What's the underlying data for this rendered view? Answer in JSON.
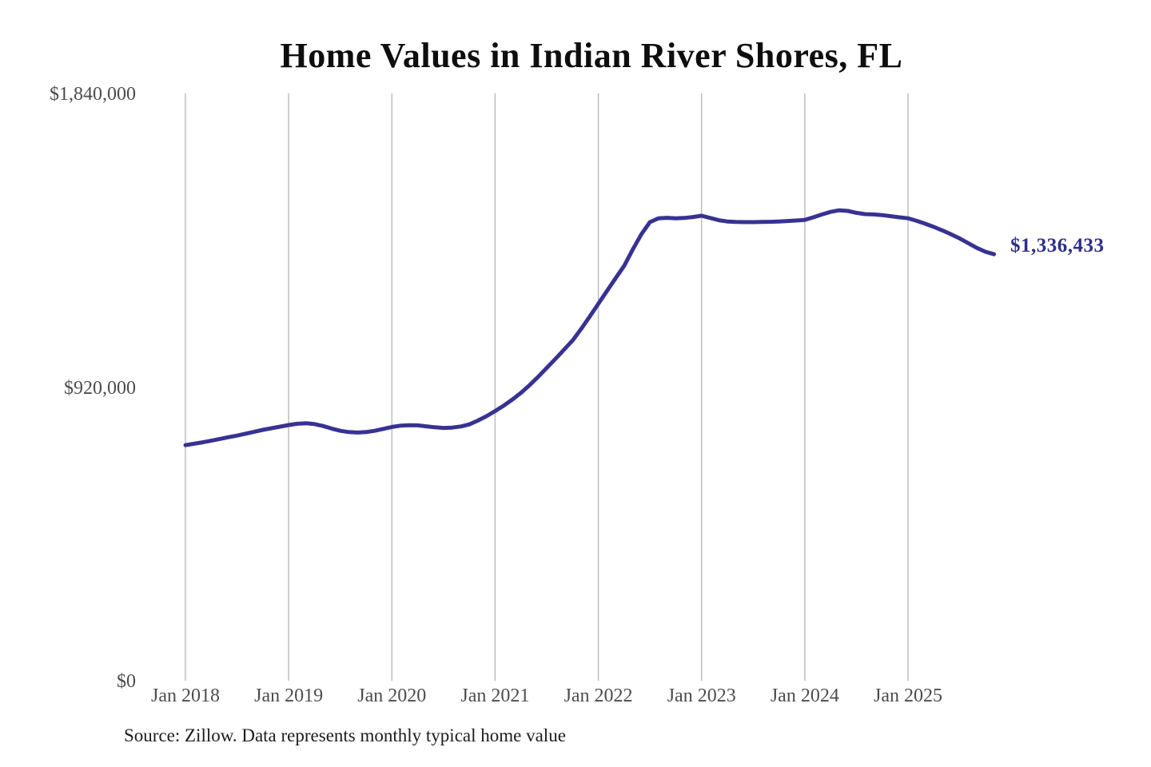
{
  "chart_data": {
    "type": "line",
    "title": "Home Values in Indian River Shores, FL",
    "source": "Source: Zillow. Data represents monthly typical home value",
    "end_label": "$1,336,433",
    "end_value": 1336433,
    "series_name": "Monthly typical home value",
    "frequency": "monthly",
    "start_month": "Jan 2018",
    "end_month": "Nov 2025",
    "ylim": [
      0,
      1840000
    ],
    "grid": "vertical-only",
    "legend": "none",
    "line_color": "#373292",
    "end_label_color": "#2d2f8c",
    "grid_color": "#bdbdbd",
    "tick_label_color": "#4c4c4c",
    "x_ticks": [
      "Jan 2018",
      "Jan 2019",
      "Jan 2020",
      "Jan 2021",
      "Jan 2022",
      "Jan 2023",
      "Jan 2024",
      "Jan 2025"
    ],
    "y_ticks": [
      {
        "label": "$1,840,000",
        "value": 1840000
      },
      {
        "label": "$920,000",
        "value": 920000
      },
      {
        "label": "$0",
        "value": 0
      }
    ],
    "values": [
      738000,
      742500,
      747000,
      752000,
      757500,
      763000,
      768000,
      774000,
      780000,
      786000,
      791000,
      796000,
      801000,
      805000,
      806500,
      804000,
      798000,
      790000,
      783000,
      779000,
      777500,
      779000,
      783000,
      789000,
      795000,
      799000,
      800500,
      800000,
      797000,
      794000,
      792000,
      793000,
      796500,
      803000,
      815000,
      829000,
      845000,
      862000,
      881000,
      902000,
      926000,
      952000,
      980000,
      1008000,
      1037000,
      1066000,
      1102000,
      1141000,
      1181000,
      1221000,
      1261000,
      1300000,
      1351000,
      1399000,
      1437000,
      1449000,
      1450500,
      1449000,
      1450000,
      1453000,
      1457000,
      1450000,
      1443000,
      1439000,
      1437500,
      1437000,
      1437000,
      1437500,
      1438000,
      1439000,
      1440500,
      1442000,
      1444000,
      1452000,
      1461000,
      1469000,
      1474000,
      1472000,
      1466000,
      1462000,
      1461000,
      1459000,
      1455500,
      1452000,
      1449000,
      1441000,
      1432000,
      1422000,
      1411000,
      1399000,
      1386000,
      1371000,
      1356000,
      1344000,
      1336433
    ]
  }
}
